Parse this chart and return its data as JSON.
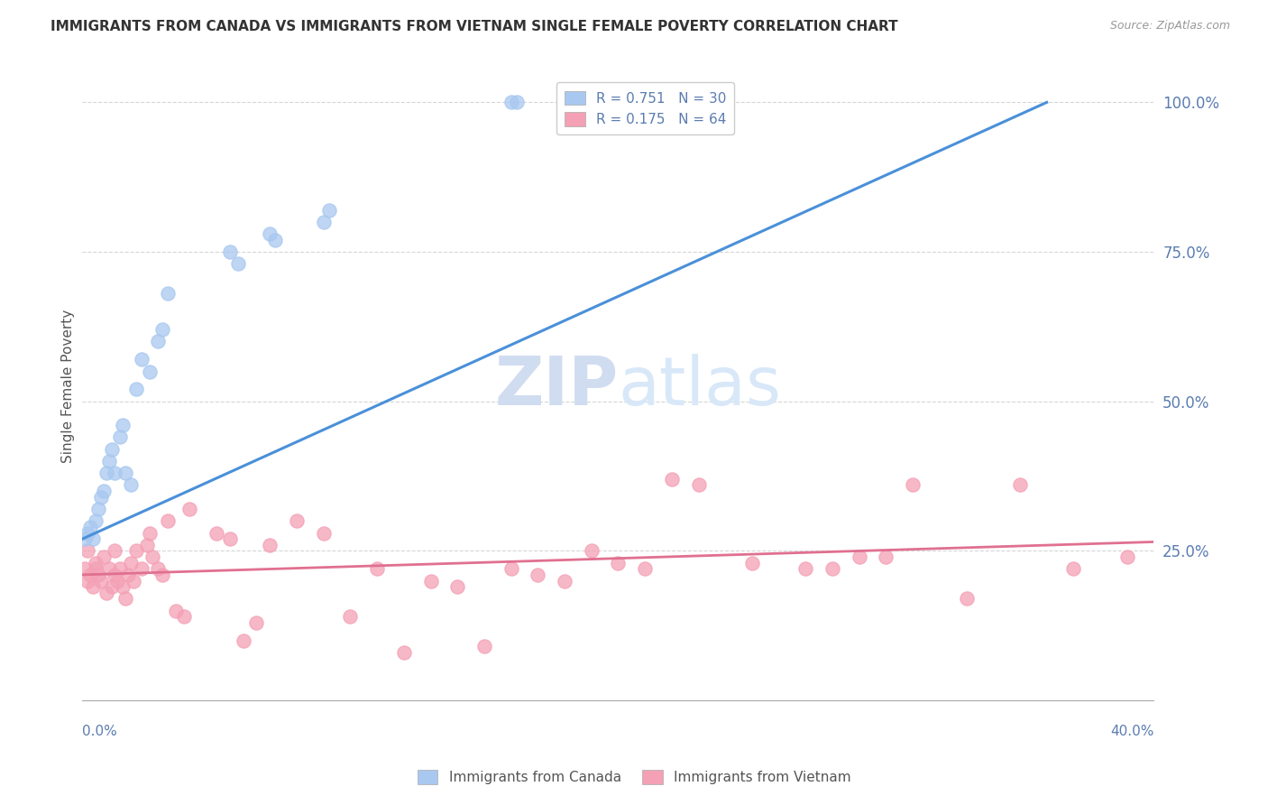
{
  "title": "IMMIGRANTS FROM CANADA VS IMMIGRANTS FROM VIETNAM SINGLE FEMALE POVERTY CORRELATION CHART",
  "source": "Source: ZipAtlas.com",
  "ylabel": "Single Female Poverty",
  "xmin": 0.0,
  "xmax": 0.4,
  "ymin": 0.0,
  "ymax": 1.05,
  "canada_R": 0.751,
  "canada_N": 30,
  "vietnam_R": 0.175,
  "vietnam_N": 64,
  "canada_color": "#A8C8F0",
  "vietnam_color": "#F4A0B5",
  "canada_line_color": "#4A90D9",
  "vietnam_line_color": "#E07090",
  "axis_label_color": "#5B7DB1",
  "title_color": "#333333",
  "watermark_text_color": "#D0DCF0",
  "grid_color": "#CCCCCC",
  "canada_x": [
    0.001,
    0.002,
    0.003,
    0.004,
    0.005,
    0.006,
    0.007,
    0.008,
    0.009,
    0.01,
    0.011,
    0.012,
    0.014,
    0.015,
    0.016,
    0.018,
    0.02,
    0.022,
    0.025,
    0.028,
    0.03,
    0.032,
    0.055,
    0.058,
    0.07,
    0.072,
    0.09,
    0.092,
    0.16,
    0.162
  ],
  "canada_y": [
    0.27,
    0.28,
    0.29,
    0.27,
    0.3,
    0.32,
    0.34,
    0.35,
    0.38,
    0.4,
    0.42,
    0.38,
    0.44,
    0.46,
    0.38,
    0.36,
    0.52,
    0.57,
    0.55,
    0.6,
    0.62,
    0.68,
    0.75,
    0.73,
    0.78,
    0.77,
    0.8,
    0.82,
    1.0,
    1.0
  ],
  "canada_line_x0": 0.0,
  "canada_line_y0": 0.27,
  "canada_line_x1": 0.36,
  "canada_line_y1": 1.0,
  "vietnam_line_x0": 0.0,
  "vietnam_line_y0": 0.21,
  "vietnam_line_x1": 0.4,
  "vietnam_line_y1": 0.265,
  "vietnam_x": [
    0.001,
    0.002,
    0.002,
    0.003,
    0.004,
    0.005,
    0.005,
    0.006,
    0.007,
    0.008,
    0.009,
    0.01,
    0.011,
    0.012,
    0.012,
    0.013,
    0.014,
    0.015,
    0.016,
    0.017,
    0.018,
    0.019,
    0.02,
    0.022,
    0.024,
    0.025,
    0.026,
    0.028,
    0.03,
    0.032,
    0.035,
    0.038,
    0.04,
    0.05,
    0.055,
    0.06,
    0.065,
    0.07,
    0.08,
    0.09,
    0.1,
    0.11,
    0.12,
    0.13,
    0.14,
    0.15,
    0.16,
    0.17,
    0.18,
    0.19,
    0.2,
    0.21,
    0.22,
    0.23,
    0.25,
    0.27,
    0.28,
    0.29,
    0.3,
    0.31,
    0.33,
    0.35,
    0.37,
    0.39
  ],
  "vietnam_y": [
    0.22,
    0.2,
    0.25,
    0.21,
    0.19,
    0.23,
    0.22,
    0.21,
    0.2,
    0.24,
    0.18,
    0.22,
    0.19,
    0.21,
    0.25,
    0.2,
    0.22,
    0.19,
    0.17,
    0.21,
    0.23,
    0.2,
    0.25,
    0.22,
    0.26,
    0.28,
    0.24,
    0.22,
    0.21,
    0.3,
    0.15,
    0.14,
    0.32,
    0.28,
    0.27,
    0.1,
    0.13,
    0.26,
    0.3,
    0.28,
    0.14,
    0.22,
    0.08,
    0.2,
    0.19,
    0.09,
    0.22,
    0.21,
    0.2,
    0.25,
    0.23,
    0.22,
    0.37,
    0.36,
    0.23,
    0.22,
    0.22,
    0.24,
    0.24,
    0.36,
    0.17,
    0.36,
    0.22,
    0.24
  ]
}
